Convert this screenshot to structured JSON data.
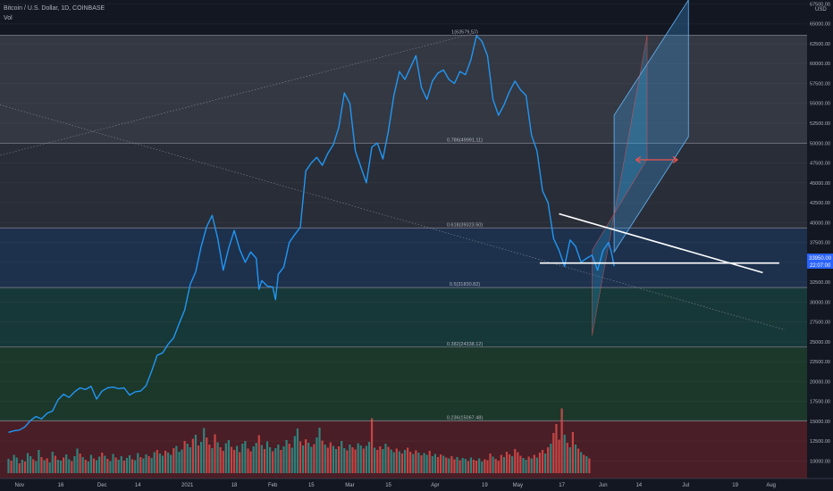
{
  "header": {
    "symbol_line": "Bitcoin / U.S. Dollar, 1D, COINBASE",
    "volume_label": "Vol"
  },
  "axis": {
    "currency": "USD",
    "last_price": "33950.00",
    "countdown": "22:07:00"
  },
  "chart_data": {
    "type": "line",
    "title": "Bitcoin / U.S. Dollar, 1D, COINBASE",
    "xlabel": "",
    "ylabel": "USD",
    "ylim": [
      7800,
      68000
    ],
    "y_ticks": [
      10000,
      12500,
      15000,
      17500,
      20000,
      22500,
      25000,
      27500,
      30000,
      32500,
      35000,
      37500,
      40000,
      42500,
      45000,
      47500,
      50000,
      52500,
      55000,
      57500,
      60000,
      62500,
      65000,
      67500
    ],
    "x_ticks": [
      {
        "label": "Nov",
        "day": 4
      },
      {
        "label": "16",
        "day": 19
      },
      {
        "label": "Dec",
        "day": 34
      },
      {
        "label": "14",
        "day": 47
      },
      {
        "label": "2021",
        "day": 65
      },
      {
        "label": "18",
        "day": 82
      },
      {
        "label": "Feb",
        "day": 96
      },
      {
        "label": "15",
        "day": 110
      },
      {
        "label": "Mar",
        "day": 124
      },
      {
        "label": "15",
        "day": 138
      },
      {
        "label": "Apr",
        "day": 155
      },
      {
        "label": "19",
        "day": 173
      },
      {
        "label": "May",
        "day": 185
      },
      {
        "label": "17",
        "day": 201
      },
      {
        "label": "Jun",
        "day": 216
      },
      {
        "label": "14",
        "day": 229
      },
      {
        "label": "Jul",
        "day": 246
      },
      {
        "label": "19",
        "day": 264
      },
      {
        "label": "Aug",
        "day": 277
      }
    ],
    "fib_levels": [
      {
        "label": "1(63579.57)",
        "value": 63579.57,
        "fill": "#363a45"
      },
      {
        "label": "0.786(49991.11)",
        "value": 49991.11,
        "fill": "#2a2e39"
      },
      {
        "label": "0.618(39323.50)",
        "value": 39323.5,
        "fill": "#1e3350"
      },
      {
        "label": "0.5(31830.82)",
        "value": 31830.82,
        "fill": "#173a3a"
      },
      {
        "label": "0.382(24338.12)",
        "value": 24338.12,
        "fill": "#1c3a2c"
      },
      {
        "label": "0.236(15067.48)",
        "value": 15067.48,
        "fill": "#243a2a"
      }
    ],
    "fib_bottom_fill": "#4a1e26",
    "series": [
      {
        "color": "#2196f3",
        "points": [
          [
            0,
            13600
          ],
          [
            2,
            13800
          ],
          [
            4,
            13900
          ],
          [
            6,
            14300
          ],
          [
            8,
            15100
          ],
          [
            10,
            15600
          ],
          [
            12,
            15300
          ],
          [
            14,
            16000
          ],
          [
            16,
            16300
          ],
          [
            18,
            17700
          ],
          [
            20,
            18400
          ],
          [
            22,
            18000
          ],
          [
            24,
            18700
          ],
          [
            26,
            19200
          ],
          [
            28,
            19000
          ],
          [
            30,
            19400
          ],
          [
            32,
            17800
          ],
          [
            34,
            18800
          ],
          [
            36,
            19200
          ],
          [
            38,
            19300
          ],
          [
            40,
            19100
          ],
          [
            42,
            19200
          ],
          [
            44,
            18300
          ],
          [
            46,
            18700
          ],
          [
            48,
            18800
          ],
          [
            50,
            19500
          ],
          [
            52,
            21300
          ],
          [
            54,
            23300
          ],
          [
            56,
            23600
          ],
          [
            58,
            24700
          ],
          [
            60,
            25500
          ],
          [
            62,
            27300
          ],
          [
            64,
            29000
          ],
          [
            66,
            32200
          ],
          [
            68,
            33800
          ],
          [
            70,
            37000
          ],
          [
            72,
            39500
          ],
          [
            74,
            40900
          ],
          [
            76,
            38000
          ],
          [
            78,
            34000
          ],
          [
            80,
            36800
          ],
          [
            82,
            39000
          ],
          [
            84,
            36600
          ],
          [
            86,
            35000
          ],
          [
            88,
            36300
          ],
          [
            90,
            35500
          ],
          [
            91,
            31600
          ],
          [
            92,
            32700
          ],
          [
            94,
            32000
          ],
          [
            96,
            31900
          ],
          [
            97,
            30300
          ],
          [
            98,
            33500
          ],
          [
            100,
            34400
          ],
          [
            102,
            37500
          ],
          [
            104,
            38500
          ],
          [
            106,
            39400
          ],
          [
            108,
            46500
          ],
          [
            110,
            47500
          ],
          [
            112,
            48200
          ],
          [
            114,
            47200
          ],
          [
            116,
            48700
          ],
          [
            118,
            49800
          ],
          [
            120,
            52000
          ],
          [
            122,
            56300
          ],
          [
            124,
            55000
          ],
          [
            126,
            49000
          ],
          [
            128,
            47000
          ],
          [
            130,
            45000
          ],
          [
            132,
            49500
          ],
          [
            134,
            50000
          ],
          [
            136,
            48000
          ],
          [
            138,
            51500
          ],
          [
            140,
            56000
          ],
          [
            142,
            59000
          ],
          [
            144,
            58000
          ],
          [
            146,
            59500
          ],
          [
            148,
            61000
          ],
          [
            150,
            57000
          ],
          [
            152,
            55500
          ],
          [
            154,
            57800
          ],
          [
            156,
            58800
          ],
          [
            158,
            59200
          ],
          [
            160,
            58000
          ],
          [
            162,
            57500
          ],
          [
            164,
            59000
          ],
          [
            166,
            58600
          ],
          [
            168,
            60500
          ],
          [
            170,
            63500
          ],
          [
            172,
            62800
          ],
          [
            174,
            61000
          ],
          [
            176,
            55500
          ],
          [
            178,
            53500
          ],
          [
            180,
            54800
          ],
          [
            182,
            56500
          ],
          [
            184,
            57800
          ],
          [
            186,
            56700
          ],
          [
            188,
            56000
          ],
          [
            190,
            51000
          ],
          [
            192,
            49000
          ],
          [
            194,
            44000
          ],
          [
            196,
            42500
          ],
          [
            198,
            38000
          ],
          [
            200,
            36500
          ],
          [
            202,
            34500
          ],
          [
            204,
            37800
          ],
          [
            206,
            37000
          ],
          [
            208,
            35000
          ],
          [
            210,
            35500
          ],
          [
            212,
            35900
          ],
          [
            214,
            34000
          ],
          [
            216,
            36500
          ],
          [
            218,
            37500
          ],
          [
            219,
            36300
          ],
          [
            220,
            34500
          ]
        ]
      }
    ],
    "volume": {
      "scale_max": 280000,
      "up_color": "#26a69a",
      "down_color": "#ef5350",
      "values": [
        32000,
        28000,
        41000,
        35000,
        22000,
        30000,
        26000,
        45000,
        38000,
        31000,
        27000,
        52000,
        36000,
        29000,
        33000,
        24000,
        48000,
        39000,
        30000,
        28000,
        35000,
        42000,
        31000,
        27000,
        38000,
        55000,
        44000,
        36000,
        30000,
        26000,
        41000,
        33000,
        29000,
        37000,
        46000,
        39000,
        32000,
        27000,
        43000,
        35000,
        30000,
        38000,
        28000,
        34000,
        40000,
        31000,
        29000,
        45000,
        36000,
        33000,
        42000,
        38000,
        34000,
        47000,
        52000,
        44000,
        39000,
        50000,
        46000,
        41000,
        56000,
        61000,
        48000,
        53000,
        72000,
        66000,
        58000,
        77000,
        86000,
        62000,
        70000,
        101000,
        80000,
        64000,
        56000,
        87000,
        69000,
        58000,
        50000,
        67000,
        74000,
        59000,
        52000,
        61000,
        47000,
        66000,
        72000,
        55000,
        49000,
        60000,
        68000,
        85000,
        63000,
        54000,
        71000,
        58000,
        49000,
        56000,
        64000,
        52000,
        60000,
        74000,
        66000,
        57000,
        83000,
        100000,
        71000,
        62000,
        76000,
        68000,
        59000,
        65000,
        80000,
        102000,
        73000,
        64000,
        57000,
        69000,
        61000,
        54000,
        60000,
        72000,
        56000,
        51000,
        64000,
        58000,
        53000,
        67000,
        62000,
        55000,
        61000,
        70000,
        123000,
        57000,
        52000,
        60000,
        54000,
        66000,
        59000,
        53000,
        47000,
        55000,
        49000,
        44000,
        52000,
        57000,
        48000,
        43000,
        51000,
        46000,
        40000,
        45000,
        41000,
        50000,
        38000,
        43000,
        36000,
        42000,
        39000,
        35000,
        33000,
        38000,
        31000,
        36000,
        29000,
        34000,
        32000,
        27000,
        35000,
        30000,
        28000,
        33000,
        26000,
        31000,
        29000,
        44000,
        37000,
        32000,
        28000,
        41000,
        36000,
        48000,
        42000,
        38000,
        54000,
        47000,
        39000,
        34000,
        30000,
        37000,
        33000,
        41000,
        35000,
        46000,
        52000,
        44000,
        58000,
        66000,
        90000,
        110000,
        75000,
        145000,
        86000,
        68000,
        58000,
        92000,
        64000,
        55000,
        47000,
        41000,
        38000,
        33000
      ],
      "directions": [
        1,
        0,
        1,
        1,
        0,
        1,
        0,
        1,
        1,
        0,
        1,
        1,
        0,
        1,
        0,
        1,
        1,
        0,
        1,
        1,
        0,
        1,
        1,
        0,
        1,
        1,
        0,
        1,
        0,
        1,
        1,
        0,
        1,
        1,
        0,
        1,
        0,
        1,
        1,
        0,
        1,
        1,
        0,
        1,
        1,
        0,
        1,
        1,
        0,
        1,
        1,
        0,
        1,
        1,
        0,
        1,
        1,
        0,
        1,
        1,
        0,
        1,
        1,
        1,
        0,
        1,
        1,
        0,
        1,
        0,
        1,
        1,
        0,
        0,
        1,
        0,
        1,
        0,
        0,
        1,
        1,
        0,
        0,
        1,
        0,
        1,
        1,
        0,
        0,
        1,
        1,
        0,
        1,
        0,
        1,
        1,
        0,
        1,
        1,
        0,
        1,
        1,
        0,
        1,
        1,
        1,
        0,
        1,
        0,
        1,
        1,
        0,
        1,
        1,
        0,
        1,
        0,
        0,
        1,
        1,
        0,
        1,
        1,
        0,
        1,
        0,
        0,
        1,
        1,
        0,
        1,
        1,
        0,
        1,
        0,
        0,
        1,
        1,
        0,
        1,
        1,
        0,
        1,
        0,
        1,
        0,
        0,
        1,
        0,
        1,
        0,
        1,
        1,
        0,
        1,
        1,
        0,
        0,
        1,
        0,
        1,
        0,
        0,
        1,
        0,
        1,
        1,
        0,
        1,
        0,
        0,
        1,
        1,
        0,
        0,
        0,
        1,
        0,
        0,
        0,
        1,
        0,
        0,
        1,
        0,
        0,
        0,
        1,
        1,
        0,
        1,
        0,
        1,
        0,
        0,
        1,
        0,
        1,
        0,
        0,
        0,
        0,
        1,
        0,
        1,
        0,
        1,
        0,
        1,
        0,
        1,
        0
      ]
    },
    "drawings": {
      "peak_to_low_dotted": [
        [
          -25,
          57000
        ],
        [
          282,
          26500
        ]
      ],
      "pre_peak_dotted": [
        [
          -25,
          46500
        ],
        [
          170,
          63900
        ]
      ],
      "support_line": [
        [
          193,
          34900
        ],
        [
          280,
          34900
        ]
      ],
      "descending_trendline": [
        [
          200,
          41100
        ],
        [
          274,
          33700
        ]
      ],
      "channel_outer": [
        [
          220,
          53500
        ],
        [
          247,
          68000
        ],
        [
          247,
          50800
        ],
        [
          220,
          36300
        ]
      ],
      "channel_inner": [
        [
          212,
          25800
        ],
        [
          232,
          63600
        ],
        [
          232,
          48000
        ],
        [
          212,
          36500
        ]
      ],
      "arrow_from": [
        228,
        47900
      ],
      "arrow_to": [
        243,
        47900
      ]
    }
  }
}
